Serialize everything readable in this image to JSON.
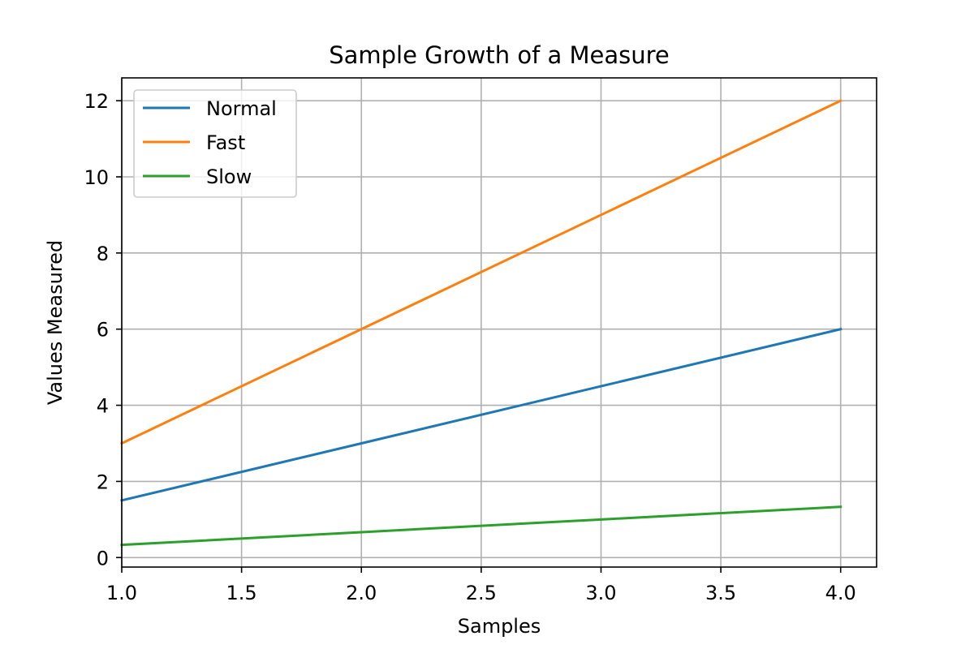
{
  "chart_data": {
    "type": "line",
    "title": "Sample Growth of a Measure",
    "xlabel": "Samples",
    "ylabel": "Values Measured",
    "xlim": [
      1.0,
      4.15
    ],
    "ylim": [
      -0.25,
      12.6
    ],
    "xticks": [
      1.0,
      1.5,
      2.0,
      2.5,
      3.0,
      3.5,
      4.0
    ],
    "xtick_labels": [
      "1.0",
      "1.5",
      "2.0",
      "2.5",
      "3.0",
      "3.5",
      "4.0"
    ],
    "yticks": [
      0,
      2,
      4,
      6,
      8,
      10,
      12
    ],
    "ytick_labels": [
      "0",
      "2",
      "4",
      "6",
      "8",
      "10",
      "12"
    ],
    "grid": true,
    "legend_position": "top-left",
    "x": [
      1,
      2,
      3,
      4
    ],
    "series": [
      {
        "name": "Normal",
        "color": "#1f77b4",
        "values": [
          1.5,
          3.0,
          4.5,
          6.0
        ]
      },
      {
        "name": "Fast",
        "color": "#ff7f0e",
        "values": [
          3.0,
          6.0,
          9.0,
          12.0
        ]
      },
      {
        "name": "Slow",
        "color": "#2ca02c",
        "values": [
          0.333,
          0.667,
          1.0,
          1.333
        ]
      }
    ]
  }
}
